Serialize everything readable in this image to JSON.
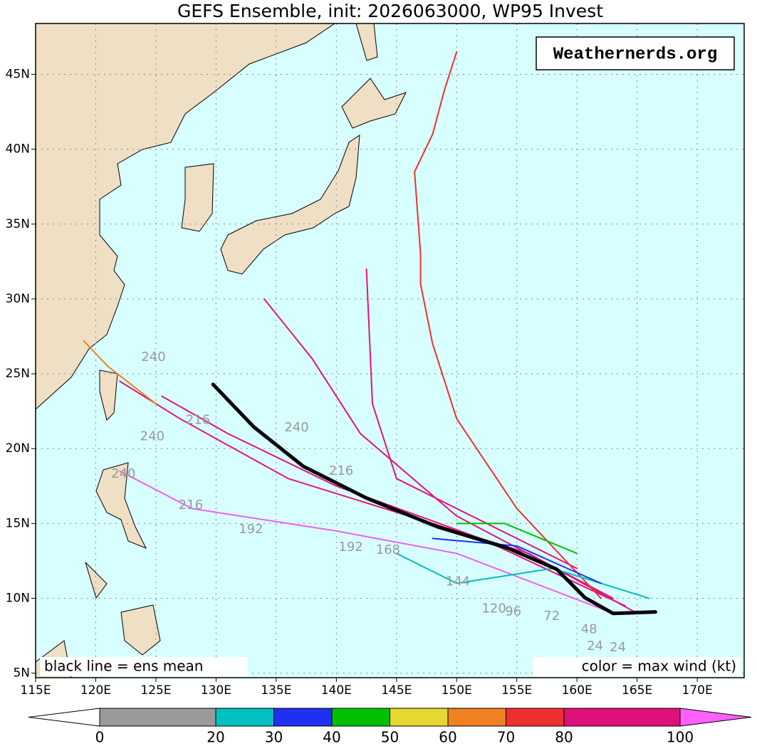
{
  "chart_data": {
    "type": "track-map",
    "title": "GEFS Ensemble, init: 2026063000, WP95 Invest",
    "watermark": "Weathernerds.org",
    "notes": [
      "black line = ens mean",
      "color = max wind (kt)"
    ],
    "xlim": [
      115,
      173.9
    ],
    "ylim": [
      4.7,
      48.4
    ],
    "xticks": [
      {
        "value": 115,
        "label": "115E"
      },
      {
        "value": 120,
        "label": "120E"
      },
      {
        "value": 125,
        "label": "125E"
      },
      {
        "value": 130,
        "label": "130E"
      },
      {
        "value": 135,
        "label": "135E"
      },
      {
        "value": 140,
        "label": "140E"
      },
      {
        "value": 145,
        "label": "145E"
      },
      {
        "value": 150,
        "label": "150E"
      },
      {
        "value": 155,
        "label": "155E"
      },
      {
        "value": 160,
        "label": "160E"
      },
      {
        "value": 165,
        "label": "165E"
      },
      {
        "value": 170,
        "label": "170E"
      }
    ],
    "yticks": [
      {
        "value": 5,
        "label": "5N"
      },
      {
        "value": 10,
        "label": "10N"
      },
      {
        "value": 15,
        "label": "15N"
      },
      {
        "value": 20,
        "label": "20N"
      },
      {
        "value": 25,
        "label": "25N"
      },
      {
        "value": 30,
        "label": "30N"
      },
      {
        "value": 35,
        "label": "35N"
      },
      {
        "value": 40,
        "label": "40N"
      },
      {
        "value": 45,
        "label": "45N"
      }
    ],
    "grid": true,
    "tracks": [
      {
        "color": "#e0147f",
        "lon": [
          165,
          156,
          146,
          136,
          127,
          122
        ],
        "lat": [
          9,
          13,
          15.5,
          18,
          22,
          24.5
        ]
      },
      {
        "color": "#e0147f",
        "lon": [
          164,
          152,
          140,
          131,
          125.5
        ],
        "lat": [
          9.5,
          14,
          17.5,
          21,
          23.5
        ]
      },
      {
        "color": "#e0147f",
        "lon": [
          163,
          150,
          142,
          138,
          134
        ],
        "lat": [
          10,
          15.5,
          21,
          26,
          30
        ]
      },
      {
        "color": "#e0147f",
        "lon": [
          160,
          145,
          143,
          142.5
        ],
        "lat": [
          12,
          18,
          23,
          32
        ]
      },
      {
        "color": "#f03030",
        "lon": [
          162,
          155,
          150,
          148,
          147,
          147,
          146.5,
          148,
          149,
          150
        ],
        "lat": [
          10,
          16,
          22,
          27,
          31,
          33,
          38.5,
          41,
          44,
          46.5
        ]
      },
      {
        "color": "#f060f0",
        "lon": [
          163,
          150,
          140,
          128,
          122
        ],
        "lat": [
          9,
          13,
          14.5,
          16,
          18.5
        ]
      },
      {
        "color": "#00c0c0",
        "lon": [
          166,
          158,
          150,
          145
        ],
        "lat": [
          10,
          12,
          11,
          13
        ]
      },
      {
        "color": "#2030f0",
        "lon": [
          162,
          155,
          148
        ],
        "lat": [
          11,
          13.5,
          14
        ]
      },
      {
        "color": "#00c000",
        "lon": [
          160,
          154,
          150
        ],
        "lat": [
          13,
          15,
          15
        ]
      },
      {
        "color": "#f08020",
        "lon": [
          125,
          121,
          119
        ],
        "lat": [
          23,
          25.5,
          27.2
        ]
      },
      {
        "color": "#000000",
        "lon": [
          129.75,
          133.15,
          137.25,
          142.52,
          148.37,
          154.23,
          158.33,
          160.67,
          163.01,
          166.52
        ],
        "lat": [
          24.29,
          21.44,
          18.82,
          16.69,
          14.79,
          13.36,
          11.94,
          10.04,
          8.99,
          9.09
        ]
      }
    ],
    "hour_labels": [
      {
        "text": "240",
        "lon": 124.8,
        "lat": 26.1
      },
      {
        "text": "216",
        "lon": 128.5,
        "lat": 21.9
      },
      {
        "text": "240",
        "lon": 136.7,
        "lat": 21.4
      },
      {
        "text": "216",
        "lon": 140.4,
        "lat": 18.5
      },
      {
        "text": "192",
        "lon": 132.9,
        "lat": 14.6
      },
      {
        "text": "240",
        "lon": 124.7,
        "lat": 20.8
      },
      {
        "text": "216",
        "lon": 127.9,
        "lat": 16.2
      },
      {
        "text": "240",
        "lon": 122.3,
        "lat": 18.3
      },
      {
        "text": "120",
        "lon": 153.1,
        "lat": 9.3
      },
      {
        "text": "96",
        "lon": 154.7,
        "lat": 9.1
      },
      {
        "text": "72",
        "lon": 157.9,
        "lat": 8.8
      },
      {
        "text": "48",
        "lon": 161.0,
        "lat": 7.9
      },
      {
        "text": "24",
        "lon": 161.5,
        "lat": 6.8
      },
      {
        "text": "24",
        "lon": 163.4,
        "lat": 6.7
      },
      {
        "text": "144",
        "lon": 150.1,
        "lat": 11.1
      },
      {
        "text": "168",
        "lon": 144.3,
        "lat": 13.2
      },
      {
        "text": "192",
        "lon": 141.2,
        "lat": 13.4
      }
    ],
    "colorbar": {
      "bounds": [
        0,
        20,
        30,
        40,
        50,
        60,
        70,
        80,
        100
      ],
      "colors": [
        "#9a9a9a",
        "#00c0c0",
        "#2030f0",
        "#00c000",
        "#e6d830",
        "#f08020",
        "#f03030",
        "#e0107a"
      ],
      "under_color": "#ffffff",
      "over_color": "#ff60ff"
    }
  }
}
